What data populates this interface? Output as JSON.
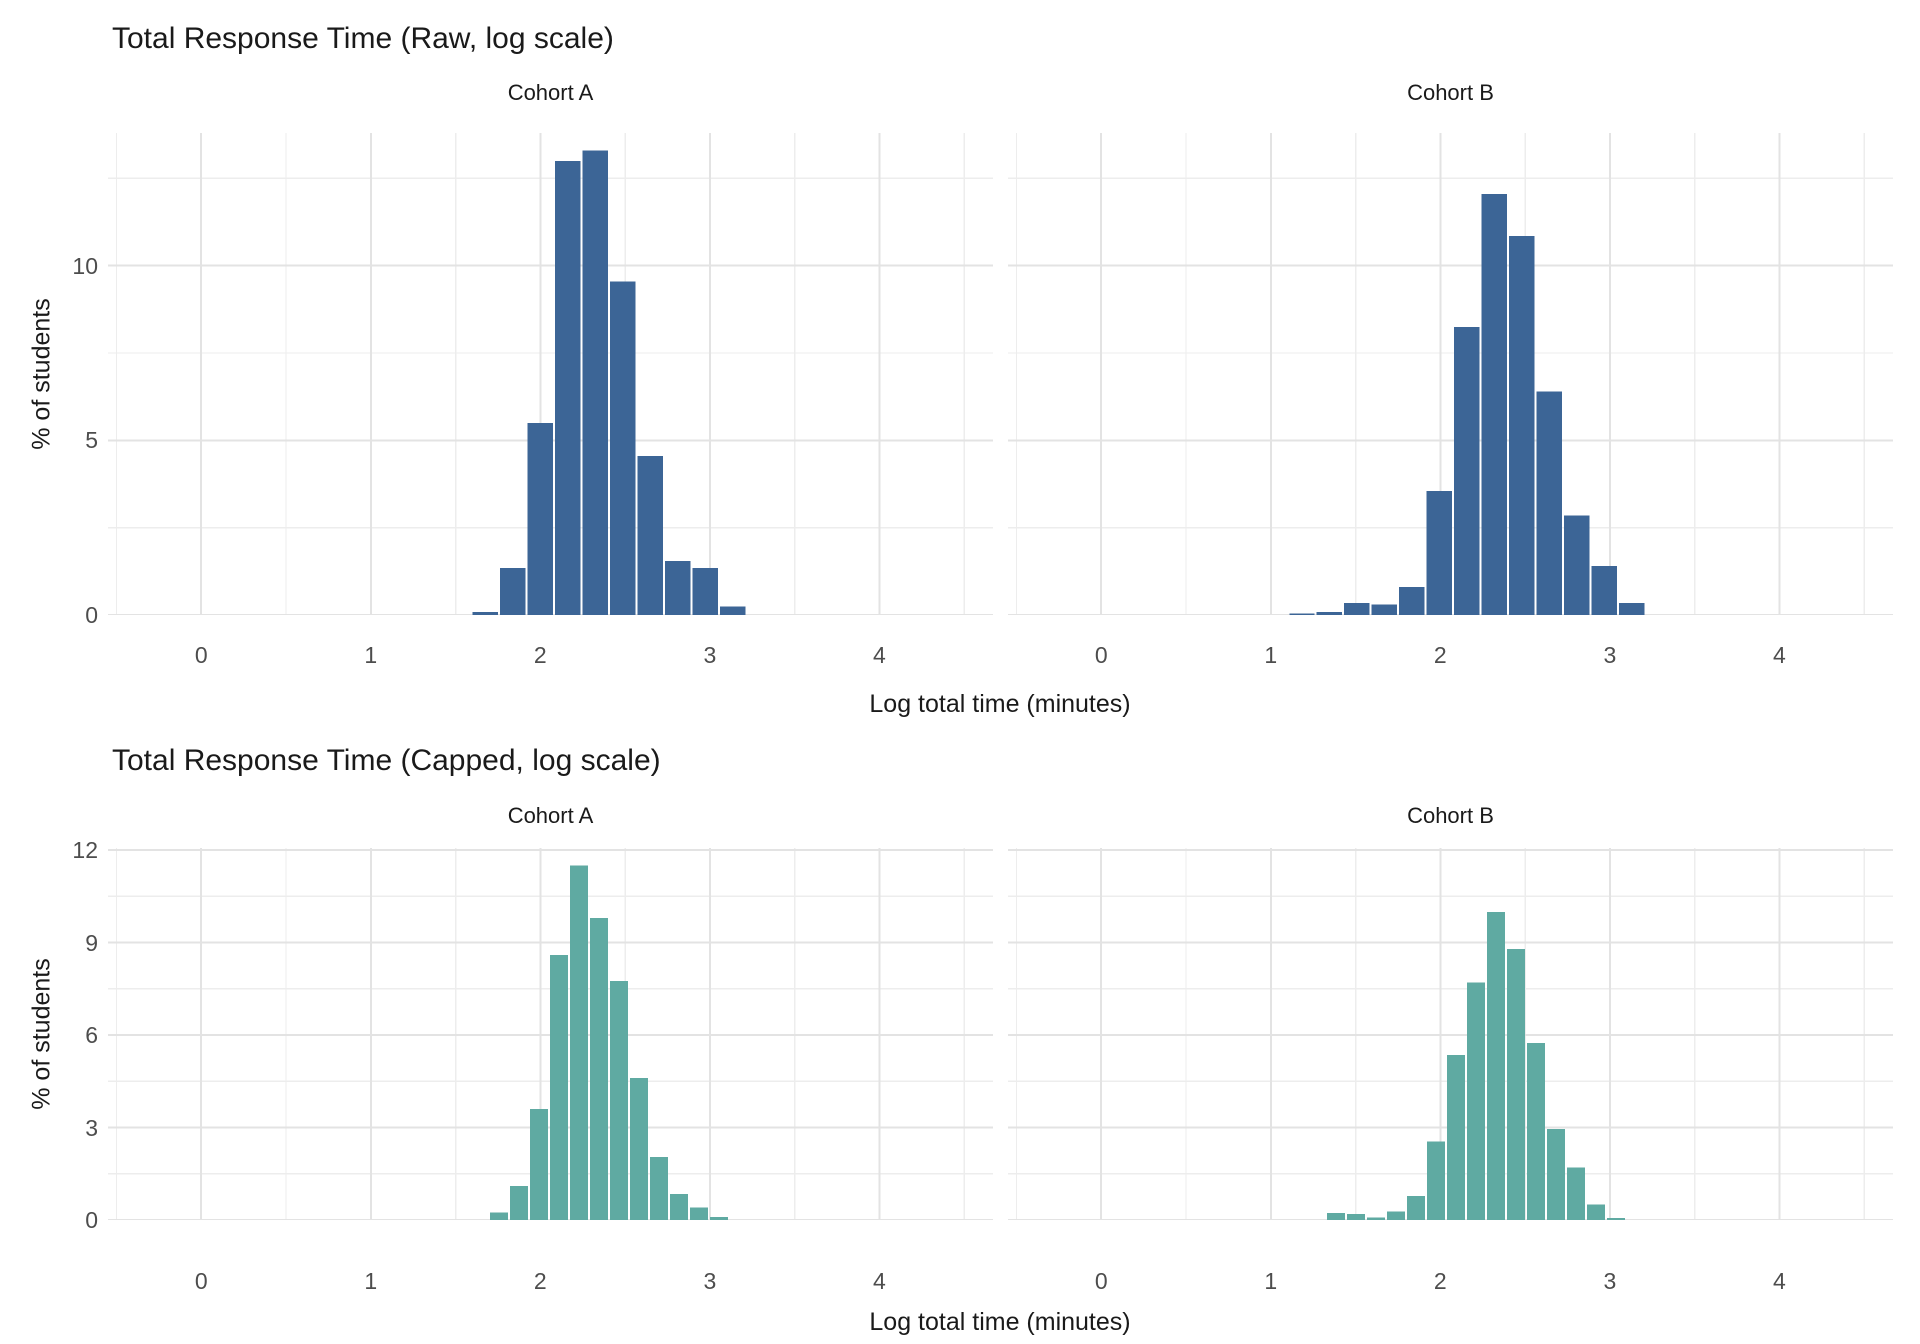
{
  "chart_data": [
    {
      "type": "bar",
      "subtype": "histogram-faceted",
      "title": "Total Response Time (Raw, log scale)",
      "xlabel": "Log total time (minutes)",
      "ylabel": "% of students",
      "bar_color": "#3C6596",
      "xlim": [
        -0.55,
        4.67
      ],
      "ylim": [
        0,
        13.8
      ],
      "x_ticks": [
        0,
        1,
        2,
        3,
        4
      ],
      "x_minor": [
        -0.5,
        0.5,
        1.5,
        2.5,
        3.5,
        4.5
      ],
      "y_ticks": [
        0,
        5,
        10
      ],
      "y_minor": [
        2.5,
        7.5,
        12.5
      ],
      "grid": true,
      "legend": false,
      "facets": [
        {
          "label": "Cohort A",
          "bin_start": 1.595,
          "bin_width": 0.162,
          "values": [
            0.08,
            1.35,
            5.5,
            13.0,
            13.3,
            9.55,
            4.55,
            1.55,
            1.35,
            0.25
          ]
        },
        {
          "label": "Cohort B",
          "bin_start": 1.103,
          "bin_width": 0.162,
          "values": [
            0.05,
            0.08,
            0.35,
            0.3,
            0.8,
            3.55,
            8.25,
            12.05,
            10.85,
            6.4,
            2.85,
            1.4,
            0.35
          ]
        }
      ]
    },
    {
      "type": "bar",
      "subtype": "histogram-faceted",
      "title": "Total Response Time (Capped, log scale)",
      "xlabel": "Log total time (minutes)",
      "ylabel": "% of students",
      "bar_color": "#5FAAA2",
      "xlim": [
        -0.55,
        4.67
      ],
      "ylim": [
        0,
        12.07
      ],
      "x_ticks": [
        0,
        1,
        2,
        3,
        4
      ],
      "x_minor": [
        -0.5,
        0.5,
        1.5,
        2.5,
        3.5,
        4.5
      ],
      "y_ticks": [
        0,
        3,
        6,
        9,
        12
      ],
      "y_minor": [
        1.5,
        4.5,
        7.5,
        10.5
      ],
      "grid": true,
      "legend": false,
      "facets": [
        {
          "label": "Cohort A",
          "bin_start": 1.698,
          "bin_width": 0.118,
          "values": [
            0.25,
            1.1,
            3.6,
            8.6,
            11.5,
            9.8,
            7.75,
            4.6,
            2.05,
            0.85,
            0.4,
            0.1
          ]
        },
        {
          "label": "Cohort B",
          "bin_start": 1.325,
          "bin_width": 0.118,
          "values": [
            0.22,
            0.2,
            0.08,
            0.28,
            0.78,
            2.55,
            5.35,
            7.7,
            10.0,
            8.8,
            5.75,
            2.95,
            1.7,
            0.5,
            0.06
          ]
        }
      ]
    }
  ],
  "style": {
    "grid_major_color": "#E3E3E3",
    "grid_minor_color": "#EDEDED",
    "axis_text_color": "#4d4d4d",
    "title_color": "#1a1a1a",
    "background": "#ffffff"
  }
}
